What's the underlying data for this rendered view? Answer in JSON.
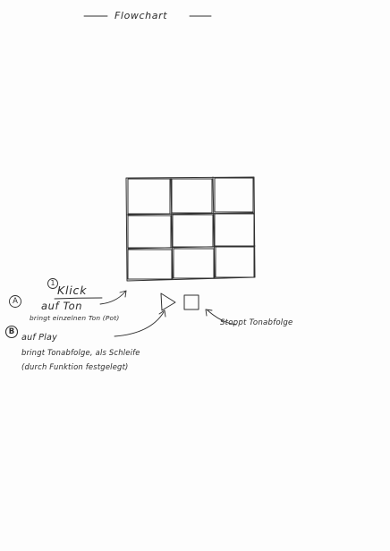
{
  "title": "Flowchart",
  "grid": {
    "rows": 3,
    "cols": 3
  },
  "controls": {
    "play_icon": "play-triangle-icon",
    "stop_icon": "stop-square-icon"
  },
  "annotations": {
    "marker_one": "1",
    "marker_a": "A",
    "klick": "Klick",
    "auf_ton": "auf Ton",
    "bringt_ton": "bringt einzelnen Ton (Pot)",
    "marker_b": "B",
    "auf_play": "auf Play",
    "bringt_folge": "bringt Tonabfolge, als Schleife",
    "durch": "(durch Funktion festgelegt)",
    "stoppt": "Stoppt Tonabfolge"
  },
  "colors": {
    "ink": "#2f2f2f",
    "paper": "#fdfdfd"
  }
}
